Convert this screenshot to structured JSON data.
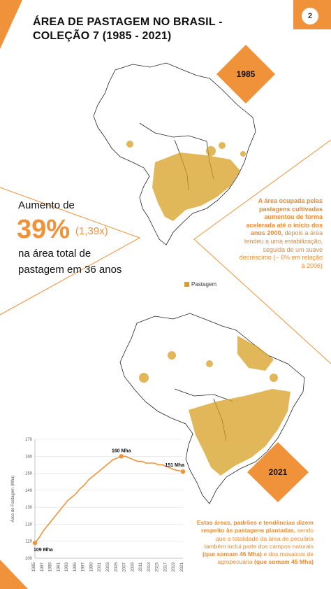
{
  "page": {
    "title": "ÁREA DE PASTAGEM NO BRASIL - COLEÇÃO 7 (1985 - 2021)",
    "page_number": "2",
    "accent": "#f0923a",
    "pasture_color": "#d7a022"
  },
  "maps": {
    "year_top": "1985",
    "year_bottom": "2021",
    "legend_label": "Pastagem"
  },
  "stat": {
    "intro": "Aumento de",
    "big": "39%",
    "multiplier": "(1,39x)",
    "description": "na área total de pastagem em 36 anos"
  },
  "note1": {
    "bold": "A área ocupada pelas pastagens cultivadas aumentou de forma acelerada até o início dos anos 2000,",
    "rest": " depois a área tendeu a uma estabilização, seguida de um suave decréscimo (~ 6% em relação à 2006)"
  },
  "note2": {
    "part1": "Estas áreas, padrões e tendências dizem respeito às pastagens plantadas,",
    "part2": " sendo que a totalidade da área de pecuária também inclui parte dos campos naturais ",
    "part3": "(que somam 46 Mha)",
    "part4": " e dos mosaicos de agropecuária ",
    "part5": "(que somam 45 Mha)"
  },
  "chart_data": {
    "type": "line",
    "ylabel": "Área de Pastagem (Mha)",
    "ylim": [
      100,
      170
    ],
    "yticks": [
      100,
      110,
      120,
      130,
      140,
      150,
      160,
      170
    ],
    "x_tick_labels": [
      "1985",
      "1987",
      "1989",
      "1991",
      "1993",
      "1995",
      "1997",
      "1999",
      "2001",
      "2003",
      "2005",
      "2007",
      "2009",
      "2011",
      "2013",
      "2015",
      "2017",
      "2019",
      "2021"
    ],
    "grid": "horizontal",
    "series": [
      {
        "x": [
          1985,
          1986,
          1987,
          1988,
          1989,
          1990,
          1991,
          1992,
          1993,
          1994,
          1995,
          1996,
          1997,
          1998,
          1999,
          2000,
          2001,
          2002,
          2003,
          2004,
          2005,
          2006,
          2007,
          2008,
          2009,
          2010,
          2011,
          2012,
          2013,
          2014,
          2015,
          2016,
          2017,
          2018,
          2019,
          2020,
          2021
        ],
        "values": [
          109,
          112,
          116,
          119,
          122,
          125,
          128,
          131,
          134,
          136,
          138,
          141,
          143,
          146,
          148,
          150,
          152,
          154,
          156,
          158,
          159,
          160,
          160,
          159,
          158,
          157,
          157,
          156,
          156,
          156,
          155,
          155,
          154,
          153,
          152,
          151.5,
          151
        ],
        "color": "#f0923a"
      }
    ],
    "annotations": [
      {
        "x": 1985,
        "y": 109,
        "text": "109 Mha"
      },
      {
        "x": 2006,
        "y": 160,
        "text": "160 Mha"
      },
      {
        "x": 2021,
        "y": 151,
        "text": "151 Mha"
      }
    ]
  }
}
